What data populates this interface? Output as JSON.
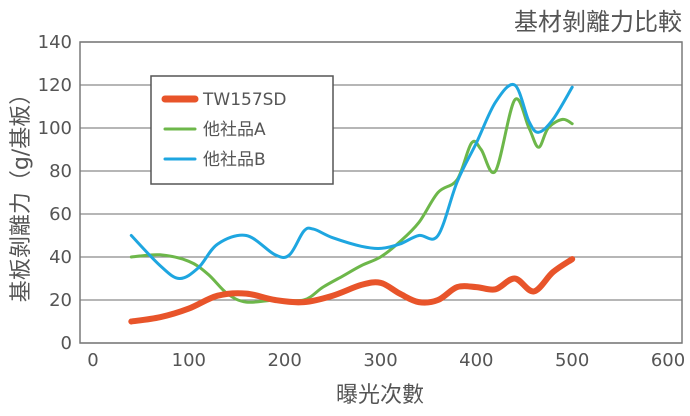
{
  "chart_data": {
    "type": "line",
    "title": "基材剝離力比較",
    "xlabel": "曝光次數",
    "ylabel": "基板剝離力（g/基板）",
    "xlim": [
      0,
      600
    ],
    "ylim": [
      0,
      140
    ],
    "xticks": [
      0,
      100,
      200,
      300,
      400,
      500,
      600
    ],
    "yticks": [
      0,
      20,
      40,
      60,
      80,
      100,
      120,
      140
    ],
    "grid": "horizontal",
    "legend_position": "top-left",
    "series": [
      {
        "name": "TW157SD",
        "color": "#e8542a",
        "x": [
          40,
          70,
          100,
          130,
          160,
          190,
          220,
          250,
          280,
          300,
          320,
          340,
          360,
          380,
          400,
          420,
          440,
          460,
          480,
          500
        ],
        "y": [
          10,
          12,
          16,
          22,
          23,
          20,
          19,
          22,
          27,
          28,
          23,
          19,
          20,
          26,
          26,
          25,
          30,
          24,
          33,
          39
        ]
      },
      {
        "name": "他社品A",
        "color": "#6db74a",
        "x": [
          40,
          70,
          100,
          120,
          140,
          160,
          190,
          220,
          240,
          260,
          280,
          300,
          320,
          340,
          360,
          380,
          395,
          405,
          420,
          440,
          455,
          465,
          475,
          490,
          500
        ],
        "y": [
          40,
          41,
          38,
          32,
          23,
          19,
          20,
          20,
          26,
          31,
          36,
          40,
          47,
          56,
          70,
          76,
          93,
          90,
          80,
          113,
          100,
          91,
          100,
          104,
          102
        ]
      },
      {
        "name": "他社品B",
        "color": "#1ea6e0",
        "x": [
          40,
          70,
          90,
          110,
          130,
          160,
          190,
          205,
          220,
          230,
          250,
          280,
          300,
          320,
          340,
          360,
          380,
          400,
          420,
          440,
          455,
          465,
          480,
          500
        ],
        "y": [
          50,
          36,
          30,
          35,
          46,
          50,
          41,
          41,
          52,
          53,
          49,
          45,
          44,
          46,
          50,
          50,
          75,
          93,
          112,
          120,
          103,
          98,
          104,
          119
        ]
      }
    ]
  }
}
